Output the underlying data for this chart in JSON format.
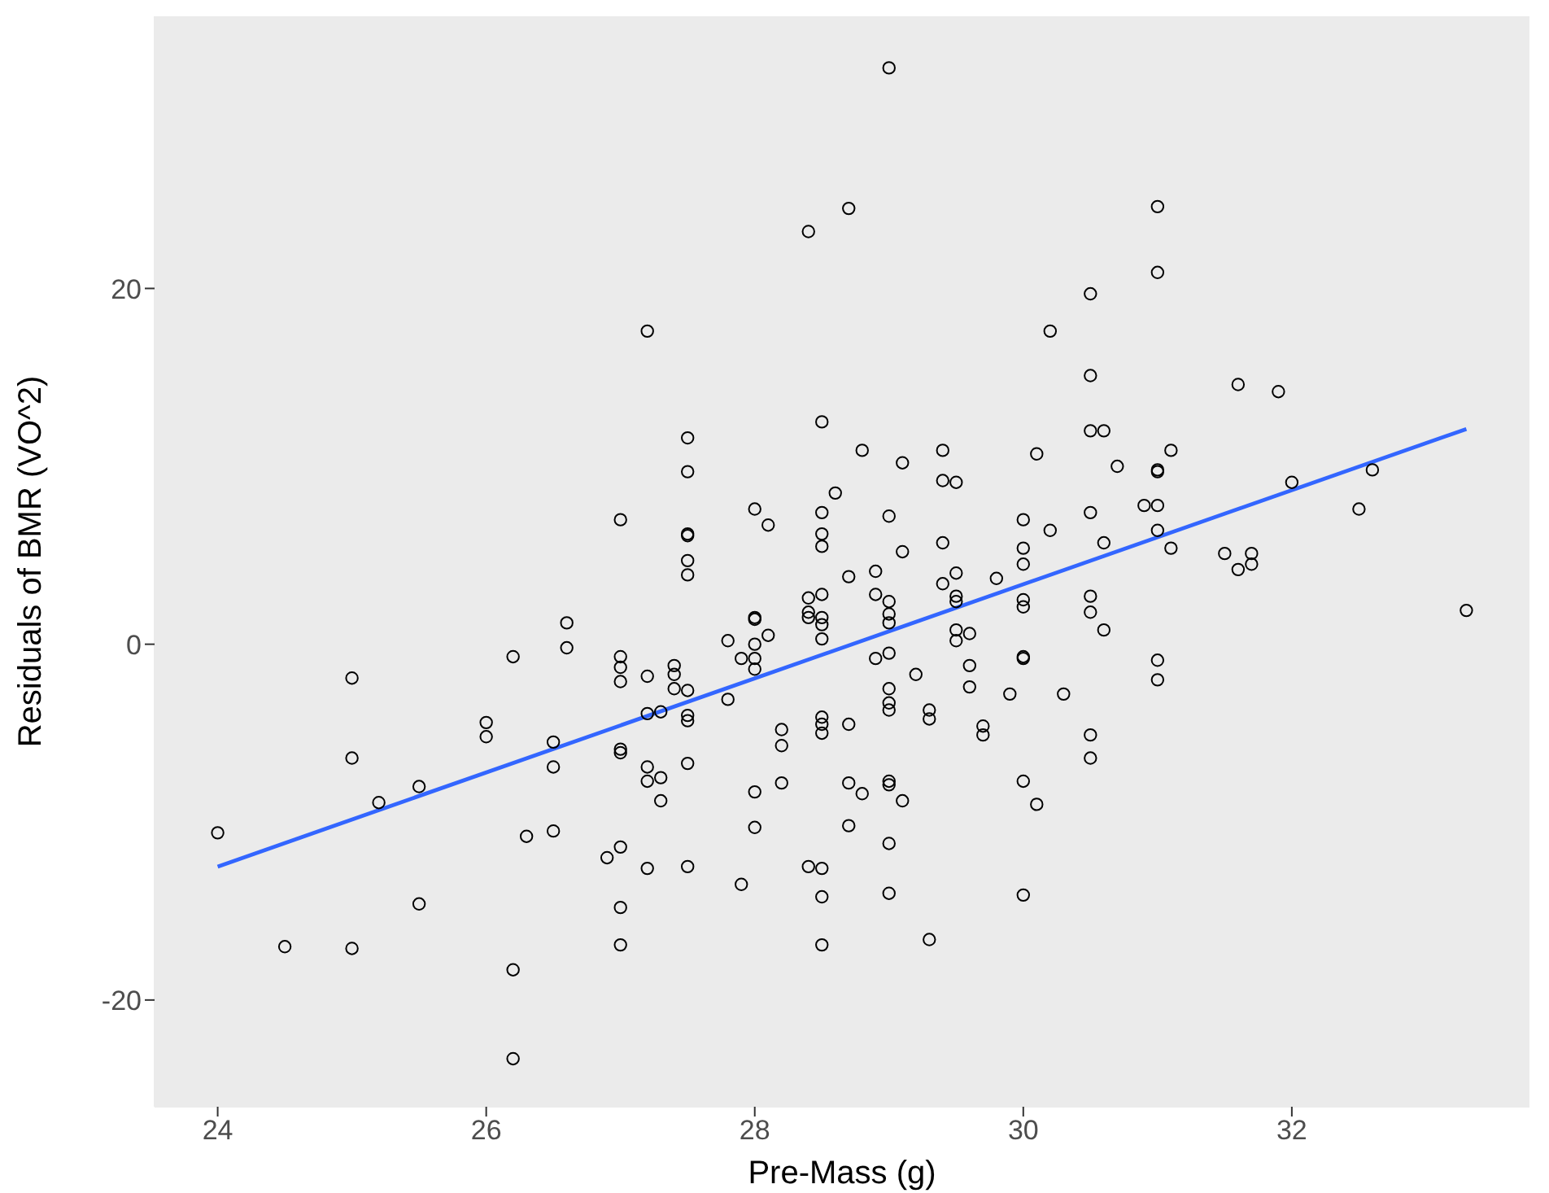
{
  "chart_data": {
    "type": "scatter",
    "xlabel": "Pre-Mass (g)",
    "ylabel": "Residuals of BMR (VO^2)",
    "xlim": [
      23.53,
      33.77
    ],
    "ylim": [
      -26,
      35.3
    ],
    "xticks": [
      24,
      26,
      28,
      30,
      32
    ],
    "yticks": [
      -20,
      0,
      20
    ],
    "marker": "circle",
    "series": [
      {
        "color": "#000000",
        "x": [
          29.0,
          28.7,
          28.4,
          27.2,
          30.2,
          28.5,
          27.5,
          27.5,
          28.8,
          29.1,
          29.4,
          29.4,
          29.5,
          30.1,
          28.6,
          28.0,
          28.1,
          27.0,
          28.5,
          29.0,
          30.0,
          30.2,
          27.5,
          27.5,
          28.5,
          28.5,
          29.4,
          29.1,
          30.0,
          31.0,
          31.0,
          30.5,
          30.5,
          31.6,
          31.9,
          30.5,
          30.6,
          31.1,
          30.7,
          31.0,
          31.0,
          32.0,
          32.6,
          32.5,
          30.5,
          30.9,
          31.0,
          31.0,
          30.6,
          31.1,
          31.5,
          31.7,
          31.6,
          31.7,
          30.5,
          30.5,
          30.6,
          31.0,
          31.0,
          30.3,
          30.5,
          30.5,
          33.3,
          26.6,
          26.6,
          26.2,
          25.0,
          26.0,
          26.0,
          26.5,
          26.5,
          25.0,
          25.5,
          25.2,
          24.0,
          26.3,
          26.5,
          26.9,
          25.5,
          24.5,
          25.0,
          26.2,
          26.2,
          27.5,
          27.5,
          30.0,
          28.9,
          29.5,
          28.7,
          29.4,
          29.8,
          30.0,
          30.0,
          29.5,
          29.5,
          28.4,
          28.5,
          28.4,
          28.4,
          28.5,
          28.5,
          28.5,
          28.9,
          29.0,
          29.0,
          29.0,
          28.0,
          28.0,
          28.1,
          28.0,
          27.8,
          27.9,
          28.0,
          28.0,
          28.9,
          29.0,
          29.5,
          29.6,
          29.5,
          29.2,
          29.6,
          30.0,
          30.0,
          27.0,
          27.0,
          27.0,
          27.2,
          27.4,
          27.4,
          27.4,
          27.5,
          27.8,
          27.2,
          27.3,
          27.5,
          27.5,
          29.0,
          29.0,
          29.0,
          29.3,
          29.3,
          29.6,
          29.9,
          29.7,
          29.7,
          28.5,
          28.5,
          28.5,
          28.7,
          28.2,
          28.2,
          27.0,
          27.0,
          27.5,
          27.2,
          27.2,
          27.3,
          27.3,
          28.0,
          28.2,
          28.7,
          28.8,
          29.0,
          29.0,
          29.1,
          30.0,
          30.1,
          28.0,
          28.7,
          29.0,
          27.0,
          27.2,
          27.5,
          27.9,
          28.4,
          28.5,
          28.5,
          29.0,
          30.0,
          27.0,
          27.0,
          28.5,
          29.3
        ],
        "values": [
          32.4,
          24.5,
          23.2,
          17.6,
          17.6,
          12.5,
          11.6,
          9.7,
          10.9,
          10.2,
          10.9,
          9.2,
          9.1,
          10.7,
          8.5,
          7.6,
          6.7,
          7.0,
          7.4,
          7.2,
          7.0,
          6.4,
          6.2,
          6.1,
          6.2,
          5.5,
          5.7,
          5.2,
          5.4,
          24.6,
          20.9,
          19.7,
          15.1,
          14.6,
          14.2,
          12.0,
          12.0,
          10.9,
          10.0,
          9.7,
          9.8,
          9.1,
          9.8,
          7.6,
          7.4,
          7.8,
          7.8,
          6.4,
          5.7,
          5.4,
          5.1,
          5.1,
          4.2,
          4.5,
          2.7,
          1.8,
          0.8,
          -0.9,
          -2.0,
          -2.8,
          -5.1,
          -6.4,
          1.9,
          1.2,
          -0.2,
          -0.7,
          -1.9,
          -4.4,
          -5.2,
          -5.5,
          -6.9,
          -6.4,
          -8.0,
          -8.9,
          -10.6,
          -10.8,
          -10.5,
          -12.0,
          -14.6,
          -17.0,
          -17.1,
          -18.3,
          -23.3,
          4.7,
          3.9,
          4.5,
          4.1,
          4.0,
          3.8,
          3.4,
          3.7,
          2.5,
          2.1,
          2.7,
          2.4,
          2.6,
          2.8,
          1.8,
          1.5,
          1.5,
          1.1,
          0.3,
          2.8,
          2.4,
          1.7,
          1.2,
          1.4,
          1.5,
          0.5,
          0.0,
          0.2,
          -0.8,
          -0.8,
          -1.4,
          -0.8,
          -0.5,
          0.8,
          0.6,
          0.2,
          -1.7,
          -1.2,
          -0.8,
          -0.7,
          -0.7,
          -1.3,
          -2.1,
          -1.8,
          -1.2,
          -1.7,
          -2.5,
          -2.6,
          -3.1,
          -3.9,
          -3.8,
          -4.0,
          -4.3,
          -3.3,
          -3.7,
          -2.5,
          -3.7,
          -4.2,
          -2.4,
          -2.8,
          -4.6,
          -5.1,
          -4.1,
          -4.5,
          -5.0,
          -4.5,
          -4.8,
          -5.7,
          -5.9,
          -6.1,
          -6.7,
          -6.9,
          -7.7,
          -7.5,
          -8.8,
          -8.3,
          -7.8,
          -7.8,
          -8.4,
          -7.7,
          -7.9,
          -8.8,
          -7.7,
          -9.0,
          -10.3,
          -10.2,
          -11.2,
          -11.4,
          -12.6,
          -12.5,
          -13.5,
          -12.5,
          -12.6,
          -14.2,
          -14.0,
          -14.1,
          -14.8,
          -16.9,
          -16.9,
          -16.6
        ]
      },
      {
        "type": "line",
        "color": "#3366ff",
        "line_style": "solid",
        "marker": "none",
        "x": [
          24,
          33.3
        ],
        "values": [
          -12.5,
          12.1
        ]
      }
    ]
  }
}
